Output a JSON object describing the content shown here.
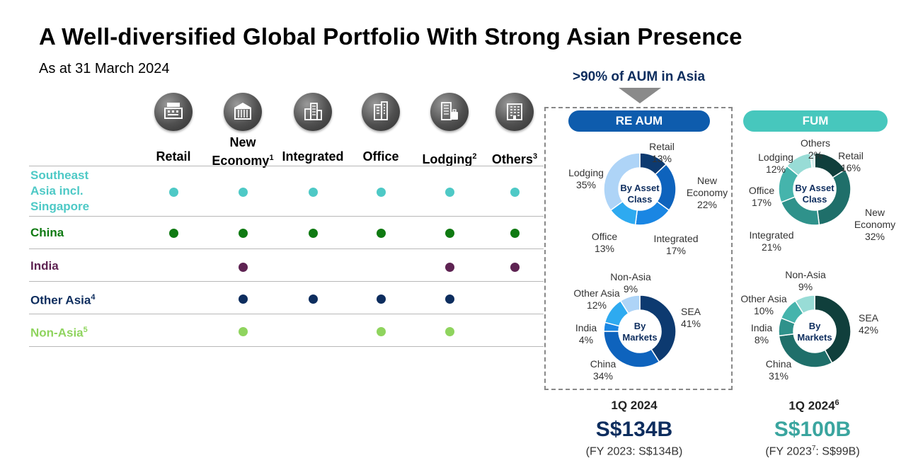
{
  "header": {
    "title": "A Well-diversified Global Portfolio With Strong Asian Presence",
    "subtitle": "As at 31 March 2024"
  },
  "matrix": {
    "columns": [
      {
        "label": "Retail",
        "sup": "",
        "icon": "cash-register-icon"
      },
      {
        "label": "New Economy",
        "sup": "1",
        "icon": "warehouse-icon"
      },
      {
        "label": "Integrated",
        "sup": "",
        "icon": "integrated-buildings-icon"
      },
      {
        "label": "Office",
        "sup": "",
        "icon": "office-building-icon"
      },
      {
        "label": "Lodging",
        "sup": "2",
        "icon": "hotel-luggage-icon"
      },
      {
        "label": "Others",
        "sup": "3",
        "icon": "building-icon"
      }
    ],
    "rows": [
      {
        "label": "Southeast Asia incl. Singapore",
        "sup": "",
        "color": "#4ec9c6",
        "presence": [
          true,
          true,
          true,
          true,
          true,
          true
        ]
      },
      {
        "label": "China",
        "sup": "",
        "color": "#0f7a12",
        "presence": [
          true,
          true,
          true,
          true,
          true,
          true
        ]
      },
      {
        "label": "India",
        "sup": "",
        "color": "#5e2352",
        "presence": [
          false,
          true,
          false,
          false,
          true,
          true
        ]
      },
      {
        "label": "Other Asia",
        "sup": "4",
        "color": "#0d2d5e",
        "presence": [
          false,
          true,
          true,
          true,
          true,
          false
        ]
      },
      {
        "label": "Non-Asia",
        "sup": "5",
        "color": "#8fd45e",
        "presence": [
          false,
          true,
          false,
          true,
          true,
          false
        ]
      }
    ]
  },
  "callout": ">90% of AUM in Asia",
  "re_aum": {
    "pill": "RE AUM",
    "period": "1Q 2024",
    "period_sup": "",
    "amount": "S$134B",
    "amount_color": "#0d2d5e",
    "fy_prefix": "(FY 2023",
    "fy_sup": "",
    "fy_suffix": ": S$134B)"
  },
  "fum": {
    "pill": "FUM",
    "period": "1Q 2024",
    "period_sup": "6",
    "amount": "S$100B",
    "amount_color": "#3aa59f",
    "fy_prefix": "(FY 2023",
    "fy_sup": "7",
    "fy_suffix": ": S$99B)"
  },
  "chart_data": [
    {
      "type": "pie",
      "group": "RE AUM",
      "title": "By Asset Class",
      "series": [
        {
          "values": [
            13,
            22,
            17,
            13,
            35
          ]
        }
      ],
      "categories": [
        "Retail",
        "New Economy",
        "Integrated",
        "Office",
        "Lodging"
      ],
      "labels": [
        "13%",
        "22%",
        "17%",
        "13%",
        "35%"
      ],
      "colors": [
        "#0d3a70",
        "#0e63bd",
        "#1a86e3",
        "#2eaaf0",
        "#aed4f7"
      ]
    },
    {
      "type": "pie",
      "group": "RE AUM",
      "title": "By Markets",
      "series": [
        {
          "values": [
            41,
            34,
            4,
            12,
            9
          ]
        }
      ],
      "categories": [
        "SEA",
        "China",
        "India",
        "Other Asia",
        "Non-Asia"
      ],
      "labels": [
        "41%",
        "34%",
        "4%",
        "12%",
        "9%"
      ],
      "colors": [
        "#0d3a70",
        "#0e63bd",
        "#1a86e3",
        "#2eaaf0",
        "#aed4f7"
      ]
    },
    {
      "type": "pie",
      "group": "FUM",
      "title": "By Asset Class",
      "series": [
        {
          "values": [
            16,
            32,
            21,
            17,
            12,
            2
          ]
        }
      ],
      "categories": [
        "Retail",
        "New Economy",
        "Integrated",
        "Office",
        "Lodging",
        "Others"
      ],
      "labels": [
        "16%",
        "32%",
        "21%",
        "17%",
        "12%",
        "2%"
      ],
      "colors": [
        "#103f3c",
        "#1f6f6a",
        "#2f928b",
        "#45b4ac",
        "#98dcd6",
        "#d6efed"
      ]
    },
    {
      "type": "pie",
      "group": "FUM",
      "title": "By Markets",
      "series": [
        {
          "values": [
            42,
            31,
            8,
            10,
            9
          ]
        }
      ],
      "categories": [
        "SEA",
        "China",
        "India",
        "Other Asia",
        "Non-Asia"
      ],
      "labels": [
        "42%",
        "31%",
        "8%",
        "10%",
        "9%"
      ],
      "colors": [
        "#103f3c",
        "#1f6f6a",
        "#2f928b",
        "#45b4ac",
        "#98dcd6"
      ]
    }
  ]
}
